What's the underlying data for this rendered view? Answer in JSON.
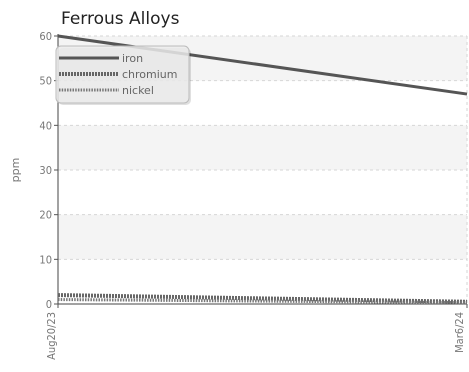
{
  "chart_data": {
    "type": "line",
    "title": "Ferrous Alloys",
    "ylabel": "ppm",
    "xlabel": "",
    "x_range": [
      "Aug20/23",
      "Mar6/24"
    ],
    "x_tick_labels": [
      "Aug20/23",
      "Mar6/24"
    ],
    "ylim": [
      0,
      60
    ],
    "y_ticks": [
      0,
      10,
      20,
      30,
      40,
      50,
      60
    ],
    "grid": true,
    "legend_position": "top-left",
    "series": [
      {
        "name": "iron",
        "style": "solid",
        "color": "#555555",
        "values": [
          60,
          47
        ]
      },
      {
        "name": "chromium",
        "style": "dense-dotted",
        "color": "#666666",
        "values": [
          2,
          0.5
        ]
      },
      {
        "name": "nickel",
        "style": "dotted",
        "color": "#777777",
        "values": [
          1,
          0.3
        ]
      }
    ]
  }
}
